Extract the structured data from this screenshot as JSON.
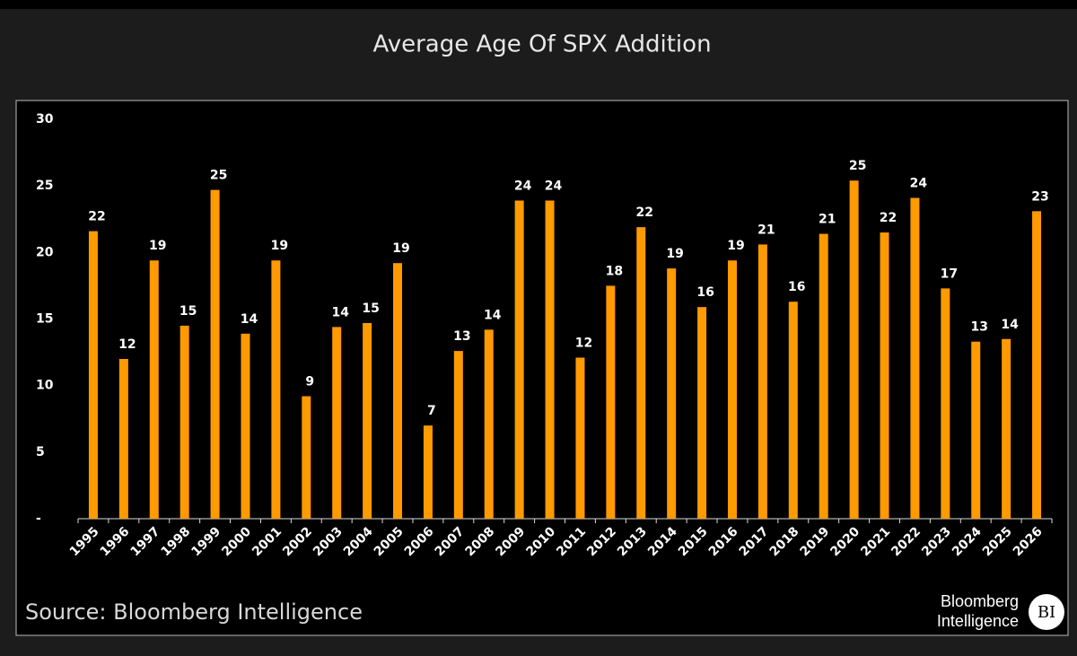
{
  "chart_data": {
    "type": "bar",
    "title": "Average Age Of SPX Addition",
    "categories": [
      "1995",
      "1996",
      "1997",
      "1998",
      "1999",
      "2000",
      "2001",
      "2002",
      "2003",
      "2004",
      "2005",
      "2006",
      "2007",
      "2008",
      "2009",
      "2010",
      "2011",
      "2012",
      "2013",
      "2014",
      "2015",
      "2016",
      "2017",
      "2018",
      "2019",
      "2020",
      "2021",
      "2022",
      "2023",
      "2024",
      "2025",
      "2026"
    ],
    "values": [
      21.6,
      12.0,
      19.4,
      14.5,
      24.7,
      13.9,
      19.4,
      9.2,
      14.4,
      14.7,
      19.2,
      7.0,
      12.6,
      14.2,
      23.9,
      23.9,
      12.1,
      17.5,
      21.9,
      18.8,
      15.9,
      19.4,
      20.6,
      16.3,
      21.4,
      25.4,
      21.5,
      24.1,
      17.3,
      13.3,
      13.5,
      23.1
    ],
    "value_labels": [
      "22",
      "12",
      "19",
      "15",
      "25",
      "14",
      "19",
      "9",
      "14",
      "15",
      "19",
      "7",
      "13",
      "14",
      "24",
      "24",
      "12",
      "18",
      "22",
      "19",
      "16",
      "19",
      "21",
      "16",
      "21",
      "25",
      "22",
      "24",
      "17",
      "13",
      "14",
      "23"
    ],
    "color": "#ff9a00",
    "ylim": [
      0,
      30
    ],
    "yticks": [
      {
        "value": 0,
        "label": "-"
      },
      5,
      10,
      15,
      20,
      25,
      30
    ],
    "grid": false,
    "source": "Source: Bloomberg Intelligence",
    "logo": {
      "line1": "Bloomberg",
      "line2": "Intelligence",
      "badge": "BI"
    }
  }
}
